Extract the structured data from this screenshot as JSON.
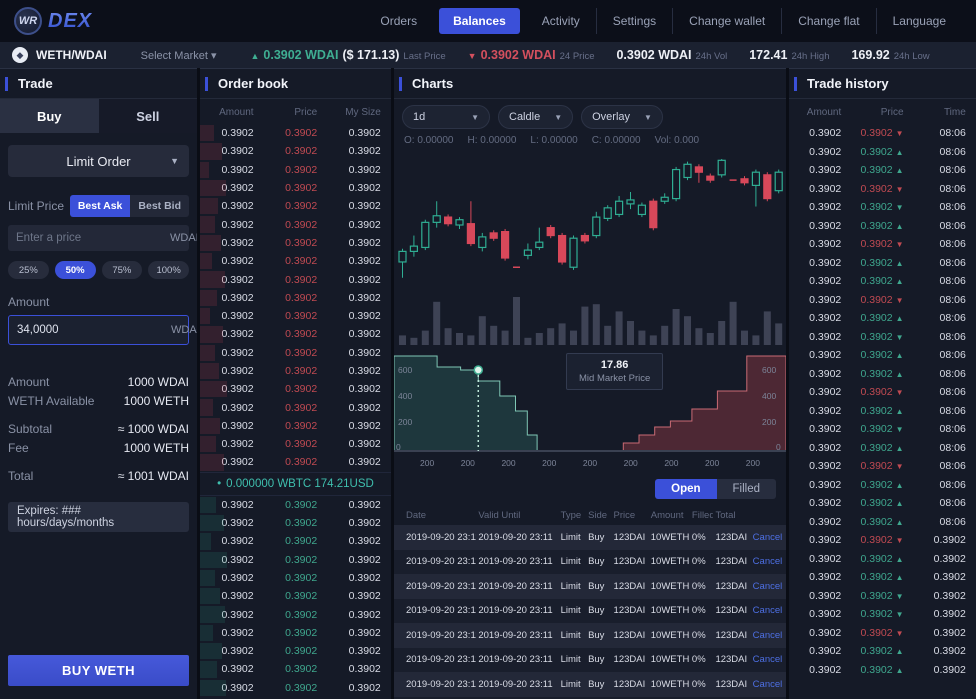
{
  "nav": {
    "logo_badge": "WR",
    "logo_text": "DEX",
    "items": [
      {
        "label": "Orders",
        "active": false,
        "divided": false
      },
      {
        "label": "Balances",
        "active": true,
        "divided": false
      },
      {
        "label": "Activity",
        "active": false,
        "divided": false
      },
      {
        "label": "Settings",
        "active": false,
        "divided": true
      },
      {
        "label": "Change wallet",
        "active": false,
        "divided": true
      },
      {
        "label": "Change flat",
        "active": false,
        "divided": true
      },
      {
        "label": "Language",
        "active": false,
        "divided": true
      }
    ]
  },
  "market_bar": {
    "pair": "WETH/WDAI",
    "coin_icon": "eth-icon",
    "select_label": "Select Market ▾",
    "last_price": {
      "arrow": "▲",
      "value": "0.3902 WDAI",
      "usd": "($ 171.13)",
      "label": "Last Price"
    },
    "price_24h": {
      "arrow": "▼",
      "value": "0.3902 WDAI",
      "label": "24 Price"
    },
    "vol_24h": {
      "value": "0.3902 WDAI",
      "label": "24h Vol"
    },
    "high_24h": {
      "value": "172.41",
      "label": "24h High"
    },
    "low_24h": {
      "value": "169.92",
      "label": "24h Low"
    }
  },
  "trade_panel": {
    "title": "Trade",
    "tab_buy": "Buy",
    "tab_sell": "Sell",
    "order_type": "Limit Order",
    "limit_price_label": "Limit Price",
    "best_ask": "Best Ask",
    "best_bid": "Best Bid",
    "price_input": {
      "placeholder": "Enter a price",
      "suffix": "WDAI"
    },
    "percents": [
      "25%",
      "50%",
      "75%",
      "100%"
    ],
    "percent_active": "50%",
    "amount_label": "Amount",
    "amount_input": {
      "value": "34,0000",
      "suffix": "WDAI"
    },
    "summary": [
      {
        "label": "Amount",
        "value": "1000 WDAI",
        "gap": false
      },
      {
        "label": "WETH Available",
        "value": "1000 WETH",
        "gap": false
      },
      {
        "label": "Subtotal",
        "value": "≈ 1000 WDAI",
        "gap": true
      },
      {
        "label": "Fee",
        "value": "1000 WETH",
        "gap": false
      },
      {
        "label": "Total",
        "value": "≈ 1001 WDAI",
        "gap": true
      }
    ],
    "expires_text": "Expires: ### hours/days/months",
    "submit_label": "BUY WETH"
  },
  "order_book": {
    "title": "Order book",
    "columns": [
      "Amount",
      "Price",
      "My Size"
    ],
    "cell_amount": "0.3902",
    "cell_price": "0.3902",
    "cell_size": "0.3902",
    "sell_depths": [
      14,
      22,
      9,
      26,
      18,
      15,
      21,
      12,
      25,
      17,
      10,
      23,
      15,
      19,
      27,
      13,
      20,
      16,
      24
    ],
    "spread_dot": "•",
    "spread": "0.000000 WBTC 174.21USD",
    "buy_depths": [
      16,
      24,
      11,
      27,
      15,
      20,
      25,
      13,
      22,
      17,
      26
    ]
  },
  "charts": {
    "title": "Charts",
    "controls": [
      "1d",
      "Caldle",
      "Overlay"
    ],
    "ohlc_parts": [
      "O: 0.00000",
      "H: 0.00000",
      "L: 0.00000",
      "C: 0.00000",
      "Vol: 0.000"
    ]
  },
  "depth_panel": {
    "tooltip_value": "17.86",
    "tooltip_label": "Mid Market Price",
    "y_ticks": [
      "600",
      "400",
      "200"
    ],
    "zero_label": "0",
    "x_ticks": [
      "200",
      "200",
      "200",
      "200",
      "200",
      "200",
      "200",
      "200",
      "200"
    ]
  },
  "orders_table": {
    "tab_open": "Open",
    "tab_filled": "Filled",
    "columns": [
      "Date",
      "Valid Until",
      "Type",
      "Side",
      "Price",
      "Amount",
      "Filled",
      "Total",
      ""
    ],
    "row_template": {
      "date": "2019-09-20 23:11",
      "valid_until": "2019-09-20 23:11",
      "type": "Limit",
      "side": "Buy",
      "price": "123DAI",
      "amount": "10WETH",
      "filled": "0%",
      "total": "123DAI",
      "action": "Cancel"
    },
    "row_count": 8
  },
  "trade_history": {
    "title": "Trade history",
    "columns": [
      "Amount",
      "Price",
      "Time"
    ],
    "cell_amount": "0.3902",
    "cell_price": "0.3902",
    "time_early": "08:06",
    "time_late": "0.3902",
    "time_switch_index": 22,
    "row_count": 30,
    "pattern": [
      "rd",
      "gu",
      "gu",
      "rd",
      "gd",
      "gu",
      "rd",
      "gu",
      "gu",
      "rd",
      "gu",
      "gd",
      "gu",
      "gu",
      "rd",
      "gu",
      "gd",
      "gu",
      "rd",
      "gu",
      "gu",
      "gu",
      "rd",
      "gu",
      "gu",
      "gd",
      "gd",
      "rd",
      "gu",
      "gu"
    ]
  },
  "chart_data": [
    {
      "type": "candlestick",
      "title": "WETH/WDAI candles with volume",
      "ohlc_readout": {
        "O": "0.00000",
        "H": "0.00000",
        "L": "0.00000",
        "C": "0.00000",
        "Vol": "0.000"
      },
      "price_scale": [
        0,
        100
      ],
      "candles": [
        [
          "g",
          22,
          30,
          10,
          32
        ],
        [
          "g",
          30,
          34,
          26,
          42
        ],
        [
          "g",
          33,
          52,
          31,
          54
        ],
        [
          "g",
          52,
          57,
          48,
          68
        ],
        [
          "r",
          51,
          56,
          49,
          58
        ],
        [
          "g",
          50,
          54,
          47,
          56
        ],
        [
          "r",
          36,
          51,
          34,
          68
        ],
        [
          "g",
          33,
          41,
          30,
          44
        ],
        [
          "r",
          40,
          44,
          38,
          46
        ],
        [
          "r",
          25,
          45,
          23,
          47
        ],
        [
          "d",
          18,
          18,
          18,
          18
        ],
        [
          "g",
          27,
          31,
          24,
          36
        ],
        [
          "g",
          33,
          37,
          31,
          48
        ],
        [
          "r",
          42,
          48,
          40,
          50
        ],
        [
          "r",
          22,
          42,
          20,
          44
        ],
        [
          "g",
          18,
          40,
          16,
          42
        ],
        [
          "r",
          38,
          42,
          36,
          44
        ],
        [
          "g",
          42,
          56,
          40,
          60
        ],
        [
          "g",
          55,
          63,
          53,
          65
        ],
        [
          "g",
          58,
          68,
          56,
          72
        ],
        [
          "g",
          66,
          69,
          62,
          75
        ],
        [
          "g",
          58,
          65,
          56,
          67
        ],
        [
          "r",
          48,
          68,
          46,
          70
        ],
        [
          "g",
          68,
          71,
          66,
          74
        ],
        [
          "g",
          70,
          92,
          68,
          94
        ],
        [
          "g",
          86,
          96,
          84,
          98
        ],
        [
          "r",
          90,
          94,
          82,
          96
        ],
        [
          "r",
          84,
          87,
          82,
          89
        ],
        [
          "g",
          88,
          99,
          86,
          100
        ],
        [
          "d",
          84,
          84,
          84,
          84
        ],
        [
          "r",
          82,
          85,
          80,
          87
        ],
        [
          "g",
          80,
          90,
          64,
          92
        ],
        [
          "r",
          70,
          88,
          68,
          90
        ],
        [
          "g",
          76,
          90,
          74,
          92
        ]
      ],
      "volumes": [
        4,
        3,
        6,
        18,
        7,
        5,
        4,
        12,
        8,
        6,
        20,
        3,
        5,
        7,
        9,
        6,
        16,
        17,
        8,
        14,
        10,
        6,
        4,
        8,
        15,
        12,
        7,
        5,
        10,
        18,
        6,
        4,
        14,
        9
      ]
    },
    {
      "type": "depth",
      "mid_market_price": "17.86",
      "y_axis_ticks": [
        600,
        400,
        200,
        0
      ],
      "x_axis_tick_label": "200",
      "bids_steps": [
        [
          0,
          0.95
        ],
        [
          0.11,
          0.95
        ],
        [
          0.11,
          0.84
        ],
        [
          0.17,
          0.84
        ],
        [
          0.17,
          0.81
        ],
        [
          0.215,
          0.81
        ],
        [
          0.215,
          0.7
        ],
        [
          0.27,
          0.7
        ],
        [
          0.27,
          0.55
        ],
        [
          0.31,
          0.55
        ],
        [
          0.31,
          0.4
        ],
        [
          0.34,
          0.4
        ],
        [
          0.34,
          0.16
        ],
        [
          0.365,
          0.16
        ],
        [
          0.365,
          0
        ]
      ],
      "asks_steps": [
        [
          0.585,
          0
        ],
        [
          0.585,
          0.08
        ],
        [
          0.625,
          0.08
        ],
        [
          0.625,
          0.16
        ],
        [
          0.665,
          0.16
        ],
        [
          0.665,
          0.24
        ],
        [
          0.705,
          0.24
        ],
        [
          0.705,
          0.3
        ],
        [
          0.76,
          0.3
        ],
        [
          0.76,
          0.42
        ],
        [
          0.825,
          0.42
        ],
        [
          0.825,
          0.6
        ],
        [
          0.9,
          0.6
        ],
        [
          0.9,
          0.95
        ],
        [
          1,
          0.95
        ]
      ],
      "marker": [
        0.215,
        0.81
      ]
    }
  ]
}
